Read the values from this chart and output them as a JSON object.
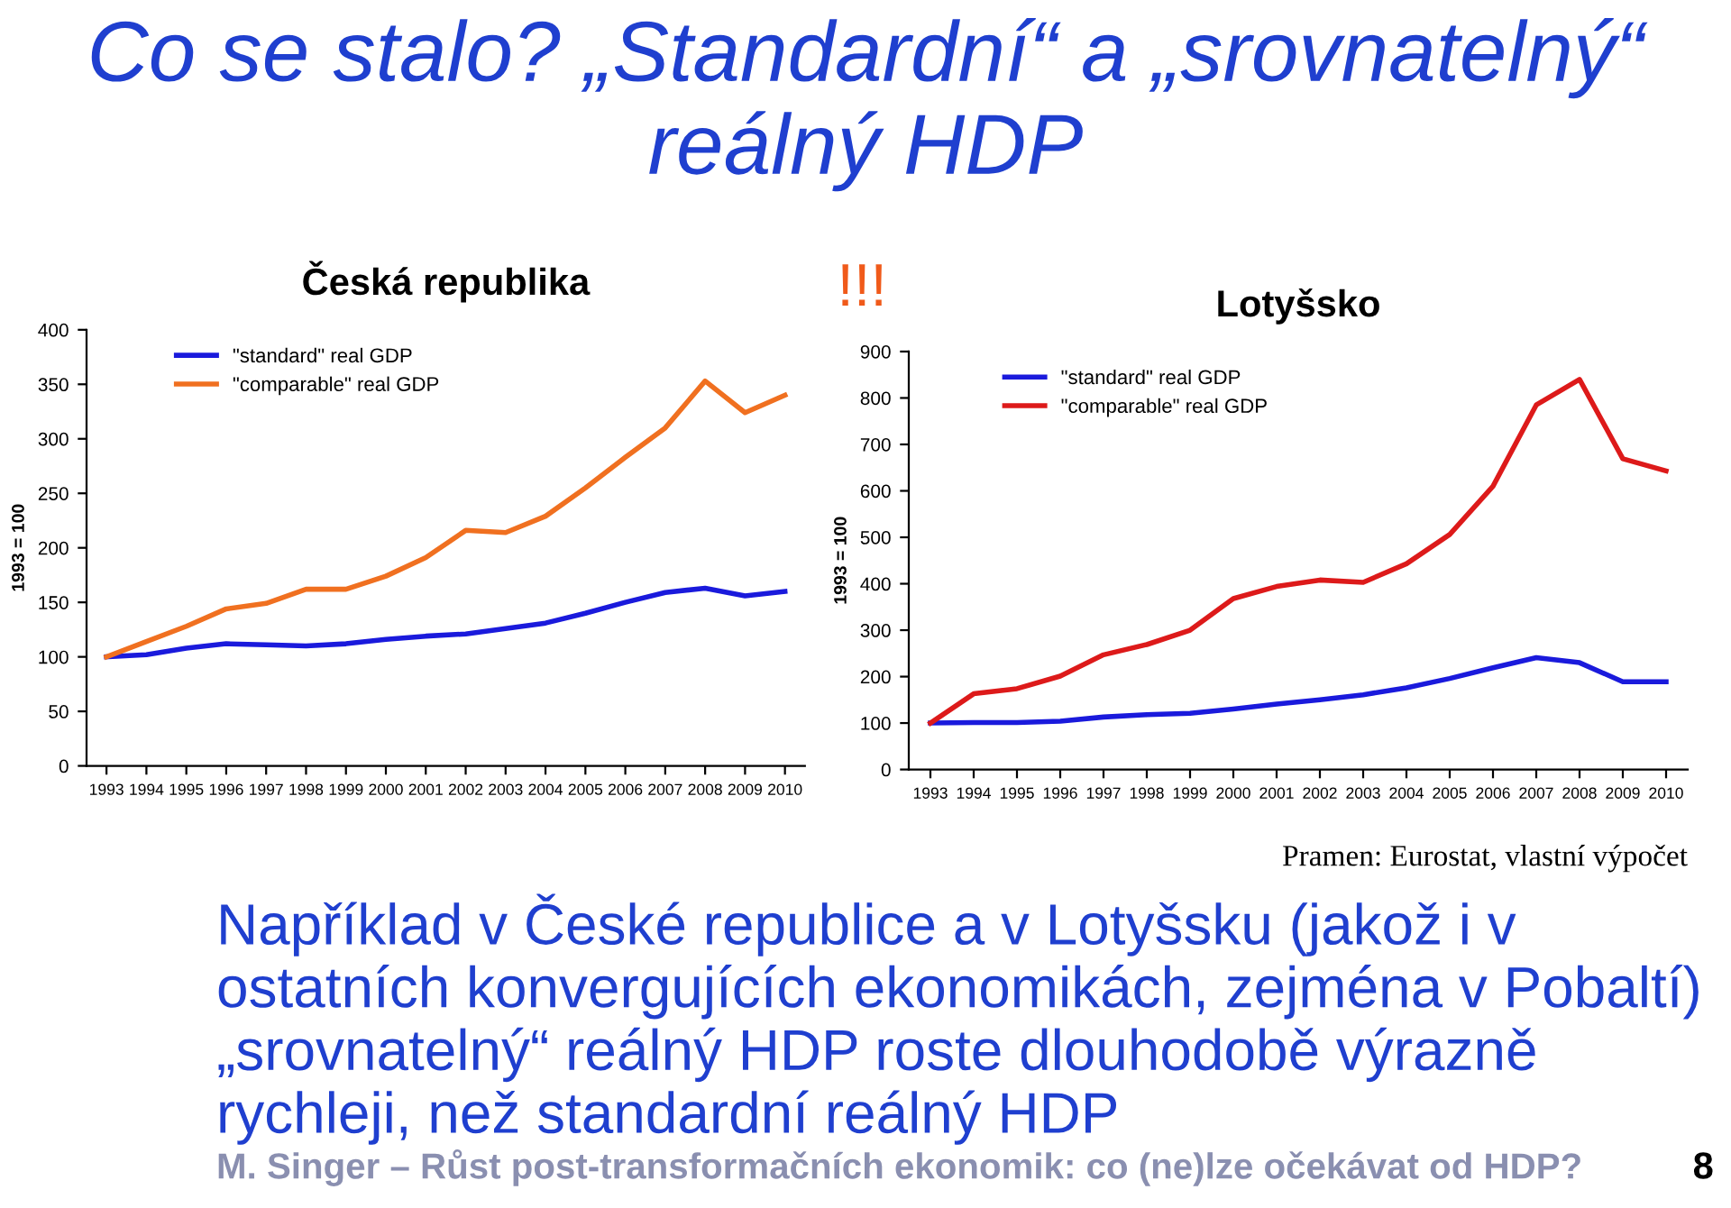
{
  "chart_data": [
    {
      "type": "other",
      "title": "Co se stalo? „Standardní“ a „srovnatelný“ reálný HDP",
      "annotations": [
        "Například v České republice a v Lotyšsku (jakož i v ostatních konvergujících ekonomikách, zejména v Pobaltí) „srovnatelný“ reálný HDP roste dlouhodobě výrazně rychleji, než standardní reálný HDP",
        "M. Singer – Růst post-transformačních ekonomik: co (ne)lze očekávat od HDP?",
        "8"
      ]
    },
    {
      "type": "line",
      "title": "Česká republika",
      "ylabel": "1993 = 100",
      "categories": [
        "1993",
        "1994",
        "1995",
        "1996",
        "1997",
        "1998",
        "1999",
        "2000",
        "2001",
        "2002",
        "2003",
        "2004",
        "2005",
        "2006",
        "2007",
        "2008",
        "2009",
        "2010"
      ],
      "ylim": [
        0,
        400
      ],
      "yticks": [
        0,
        50,
        100,
        150,
        200,
        250,
        300,
        350,
        400
      ],
      "grid": false,
      "legend": "top left",
      "series": [
        {
          "name": "\"standard\" real GDP",
          "color": "#1a1adc",
          "values": [
            100,
            102,
            108,
            112,
            111,
            110,
            112,
            116,
            119,
            121,
            126,
            131,
            140,
            150,
            159,
            163,
            156,
            160
          ]
        },
        {
          "name": "\"comparable\" real GDP",
          "color": "#f07020",
          "values": [
            100,
            114,
            128,
            144,
            149,
            162,
            162,
            174,
            191,
            216,
            214,
            229,
            255,
            283,
            310,
            353,
            324,
            340
          ]
        }
      ]
    },
    {
      "type": "line",
      "title": "Lotyšsko",
      "ylabel": "1993 = 100",
      "categories": [
        "1993",
        "1994",
        "1995",
        "1996",
        "1997",
        "1998",
        "1999",
        "2000",
        "2001",
        "2002",
        "2003",
        "2004",
        "2005",
        "2006",
        "2007",
        "2008",
        "2009",
        "2010"
      ],
      "ylim": [
        0,
        900
      ],
      "yticks": [
        0,
        100,
        200,
        300,
        400,
        500,
        600,
        700,
        800,
        900
      ],
      "grid": false,
      "legend": "top left",
      "annotations": [
        "!!!",
        "Pramen: Eurostat, vlastní výpočet"
      ],
      "series": [
        {
          "name": "\"standard\" real GDP",
          "color": "#1a1adc",
          "values": [
            100,
            101,
            101,
            104,
            113,
            118,
            121,
            130,
            141,
            150,
            161,
            176,
            196,
            219,
            241,
            230,
            189,
            189
          ]
        },
        {
          "name": "\"comparable\" real GDP",
          "color": "#dd1a1a",
          "values": [
            100,
            163,
            174,
            201,
            247,
            269,
            300,
            368,
            394,
            408,
            403,
            443,
            506,
            610,
            785,
            840,
            669,
            643
          ]
        }
      ]
    }
  ]
}
